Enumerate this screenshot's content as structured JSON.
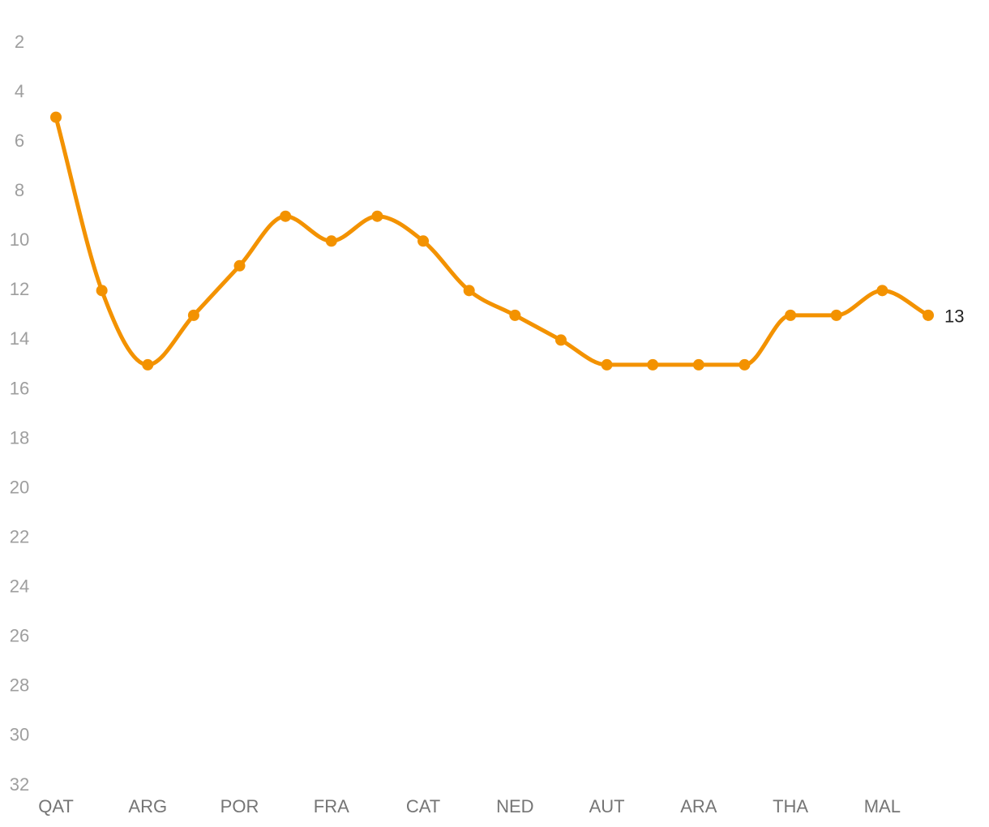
{
  "chart_data": {
    "type": "line",
    "categories": [
      "QAT",
      null,
      "ARG",
      null,
      "POR",
      null,
      "FRA",
      null,
      "CAT",
      null,
      "NED",
      null,
      "AUT",
      null,
      "ARA",
      null,
      "THA",
      null,
      "MAL",
      null
    ],
    "values": [
      5,
      12,
      15,
      13,
      11,
      9,
      10,
      9,
      10,
      12,
      13,
      14,
      15,
      15,
      15,
      15,
      13,
      13,
      12,
      13
    ],
    "color": "#f39200",
    "ylim": [
      2,
      32
    ],
    "y_reversed": true,
    "yticks": [
      2,
      4,
      6,
      8,
      10,
      12,
      14,
      16,
      18,
      20,
      22,
      24,
      26,
      28,
      30,
      32
    ],
    "last_value_label": true
  }
}
